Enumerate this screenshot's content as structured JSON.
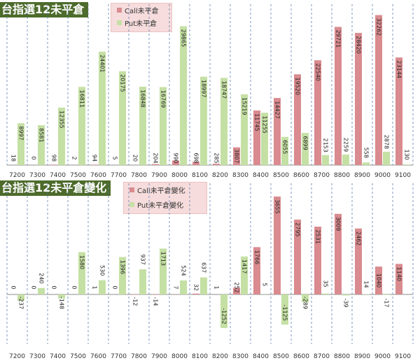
{
  "colors": {
    "call": "#d98b8f",
    "put": "#c5e0a4",
    "title_bg": "#4d6b2b",
    "legend_bg": "#f6dcdc"
  },
  "chart_data": [
    {
      "type": "bar",
      "title": "台指選12未平倉",
      "categories": [
        "7200",
        "7300",
        "7400",
        "7500",
        "7600",
        "7700",
        "7800",
        "7900",
        "8000",
        "8100",
        "8200",
        "8300",
        "8400",
        "8500",
        "8600",
        "8700",
        "8800",
        "8900",
        "9000",
        "9100"
      ],
      "series": [
        {
          "name": "Call未平倉",
          "values": [
            18,
            0,
            98,
            2,
            94,
            5,
            20,
            204,
            990,
            698,
            285,
            3807,
            11745,
            14427,
            19520,
            22540,
            29721,
            28420,
            32262,
            23144
          ]
        },
        {
          "name": "Put未平倉",
          "values": [
            8997,
            8581,
            12355,
            16811,
            24401,
            20175,
            16848,
            16769,
            29865,
            18997,
            18747,
            15219,
            11255,
            6055,
            6899,
            2153,
            2259,
            558,
            2878,
            130
          ]
        }
      ],
      "data_labels": {
        "call": [
          "18",
          "0",
          "98",
          "2",
          "94",
          "5",
          "20",
          "204",
          "990",
          "698",
          "285",
          "3807",
          "11745",
          "14427",
          "19520",
          "22540",
          "29721",
          "28420",
          "32262",
          "23144"
        ],
        "put": [
          "8997",
          "8581",
          "12355",
          "16811",
          "24401",
          "20175",
          "16848",
          "16769",
          "29865",
          "18997",
          "18747",
          "15219",
          "11255",
          "6055",
          "6899",
          "2153",
          "2259",
          "558",
          "2878",
          "130"
        ]
      },
      "ylim": [
        0,
        34000
      ],
      "grid": "vertical dashed",
      "legend_position": "top-center"
    },
    {
      "type": "bar",
      "title": "台指選12未平倉變化",
      "categories": [
        "7200",
        "7300",
        "7400",
        "7500",
        "7600",
        "7700",
        "7800",
        "7900",
        "8000",
        "8100",
        "8200",
        "8300",
        "8400",
        "8500",
        "8600",
        "8700",
        "8800",
        "8900",
        "9000",
        "9100"
      ],
      "series": [
        {
          "name": "Call未平倉變化",
          "values": [
            0,
            0,
            0,
            0,
            1,
            0,
            -12,
            -14,
            7,
            32,
            1,
            252,
            1766,
            3655,
            2795,
            2531,
            3009,
            2462,
            1040,
            1140
          ]
        },
        {
          "name": "Put未平倉變化",
          "values": [
            -237,
            240,
            -148,
            1580,
            530,
            1396,
            937,
            1713,
            524,
            637,
            -1252,
            1417,
            5,
            -1125,
            -289,
            35,
            -39,
            14,
            -17,
            0
          ]
        }
      ],
      "data_labels": {
        "call": [
          "0",
          "0",
          "0",
          "0",
          "1",
          "0",
          "-12",
          "-14",
          "7",
          "32",
          "1",
          "252",
          "1766",
          "3655",
          "2795",
          "2531",
          "3009",
          "2462",
          "1040",
          "1140"
        ],
        "put": [
          "-237",
          "240",
          "-148",
          "1580",
          "530",
          "1396",
          "937",
          "1713",
          "524",
          "637",
          "-1252",
          "1417",
          "5",
          "-1125",
          "-289",
          "35",
          "-39",
          "14",
          "-17",
          ""
        ]
      },
      "ylim": [
        -1600,
        3800
      ],
      "grid": "vertical dashed",
      "legend_position": "top-center"
    }
  ]
}
